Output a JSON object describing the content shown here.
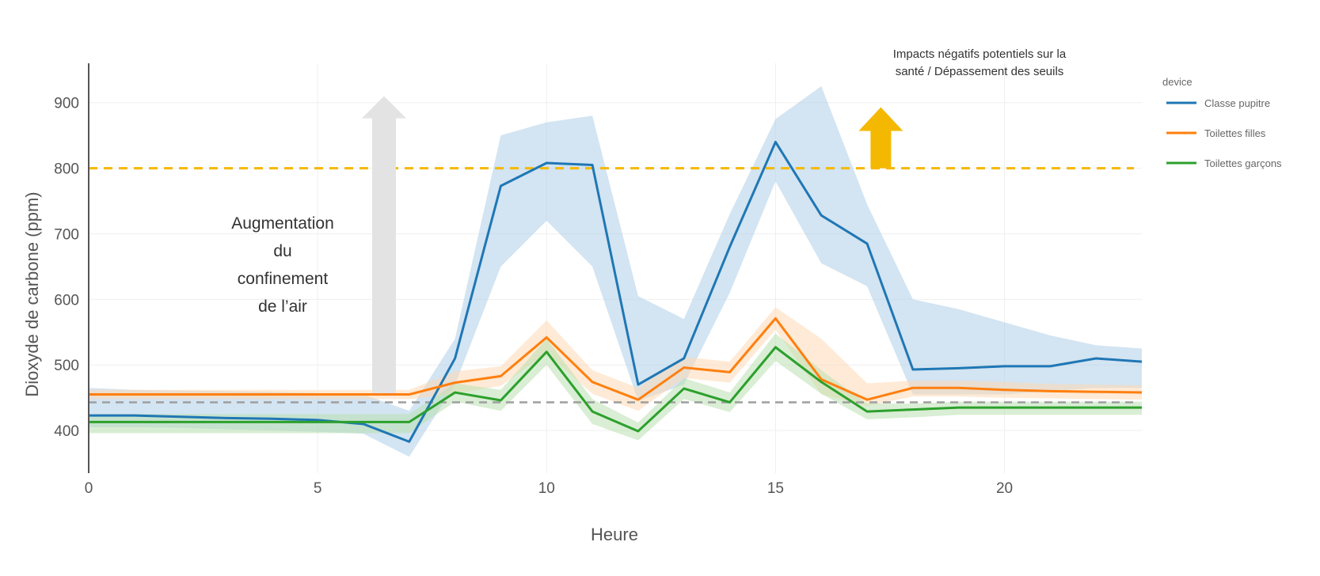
{
  "chart_data": {
    "type": "line",
    "title": "",
    "xlabel": "Heure",
    "ylabel": "Dioxyde de carbone (ppm)",
    "xlim": [
      0,
      23
    ],
    "ylim": [
      335,
      960
    ],
    "xticks": [
      0,
      5,
      10,
      15,
      20
    ],
    "yticks": [
      400,
      500,
      600,
      700,
      800,
      900
    ],
    "grid": true,
    "legend": {
      "title": "device",
      "position": "right"
    },
    "series": [
      {
        "name": "Classe pupitre",
        "color": "#1f77b4",
        "band_color": "#aecde8",
        "x": [
          0,
          1,
          2,
          3,
          4,
          5,
          6,
          7,
          8,
          9,
          10,
          11,
          12,
          13,
          14,
          15,
          16,
          17,
          18,
          19,
          20,
          21,
          22,
          23
        ],
        "values": [
          423,
          423,
          421,
          419,
          418,
          416,
          410,
          383,
          510,
          773,
          808,
          805,
          470,
          510,
          680,
          840,
          728,
          685,
          493,
          495,
          498,
          498,
          510,
          505
        ],
        "upper": [
          465,
          462,
          461,
          460,
          459,
          457,
          455,
          430,
          540,
          850,
          870,
          880,
          605,
          570,
          730,
          875,
          925,
          745,
          600,
          585,
          565,
          545,
          530,
          525
        ],
        "lower": [
          405,
          405,
          404,
          402,
          400,
          398,
          395,
          360,
          470,
          650,
          720,
          650,
          445,
          470,
          610,
          780,
          655,
          620,
          455,
          455,
          455,
          460,
          465,
          465
        ]
      },
      {
        "name": "Toilettes filles",
        "color": "#ff7f0e",
        "band_color": "#fdd9b5",
        "x": [
          0,
          1,
          2,
          3,
          4,
          5,
          6,
          7,
          8,
          9,
          10,
          11,
          12,
          13,
          14,
          15,
          16,
          17,
          18,
          19,
          20,
          21,
          22,
          23
        ],
        "values": [
          455,
          455,
          455,
          455,
          455,
          455,
          455,
          455,
          473,
          483,
          542,
          474,
          447,
          496,
          489,
          571,
          478,
          447,
          465,
          465,
          462,
          460,
          459,
          458
        ],
        "upper": [
          462,
          462,
          462,
          462,
          462,
          462,
          462,
          462,
          490,
          498,
          568,
          492,
          465,
          512,
          505,
          588,
          540,
          472,
          476,
          476,
          474,
          471,
          470,
          469
        ],
        "lower": [
          448,
          448,
          448,
          448,
          448,
          448,
          448,
          448,
          456,
          468,
          518,
          456,
          430,
          480,
          473,
          554,
          455,
          437,
          452,
          452,
          450,
          449,
          448,
          447
        ]
      },
      {
        "name": "Toilettes garçons",
        "color": "#2ca02c",
        "band_color": "#b9e0b0",
        "x": [
          0,
          1,
          2,
          3,
          4,
          5,
          6,
          7,
          8,
          9,
          10,
          11,
          12,
          13,
          14,
          15,
          16,
          17,
          18,
          19,
          20,
          21,
          22,
          23
        ],
        "values": [
          413,
          413,
          413,
          413,
          413,
          413,
          413,
          413,
          458,
          446,
          520,
          429,
          399,
          464,
          443,
          527,
          474,
          429,
          432,
          435,
          435,
          435,
          435,
          435
        ],
        "upper": [
          425,
          425,
          425,
          425,
          425,
          425,
          425,
          425,
          472,
          462,
          540,
          448,
          412,
          480,
          458,
          548,
          492,
          441,
          441,
          444,
          444,
          444,
          444,
          444
        ],
        "lower": [
          396,
          396,
          396,
          396,
          396,
          396,
          396,
          396,
          444,
          430,
          500,
          410,
          385,
          448,
          428,
          506,
          456,
          417,
          420,
          424,
          424,
          424,
          424,
          424
        ]
      }
    ],
    "reference_lines": [
      {
        "y": 800,
        "color": "#f5b800",
        "style": "dashed"
      },
      {
        "y": 443,
        "color": "#9e9e9e",
        "style": "dashed"
      }
    ],
    "annotations": {
      "arrow_grey": {
        "x": 6.45,
        "y_from": 453,
        "y_to": 910,
        "color": "#e3e3e3"
      },
      "arrow_yellow": {
        "x": 17.3,
        "y_from": 800,
        "y_to": 893,
        "color": "#f5b800"
      },
      "confinement_lines": [
        "Augmentation",
        "du",
        "confinement",
        "de l’air"
      ],
      "health_lines": [
        "Impacts négatifs potentiels sur la",
        "santé / Dépassement des seuils"
      ]
    }
  }
}
